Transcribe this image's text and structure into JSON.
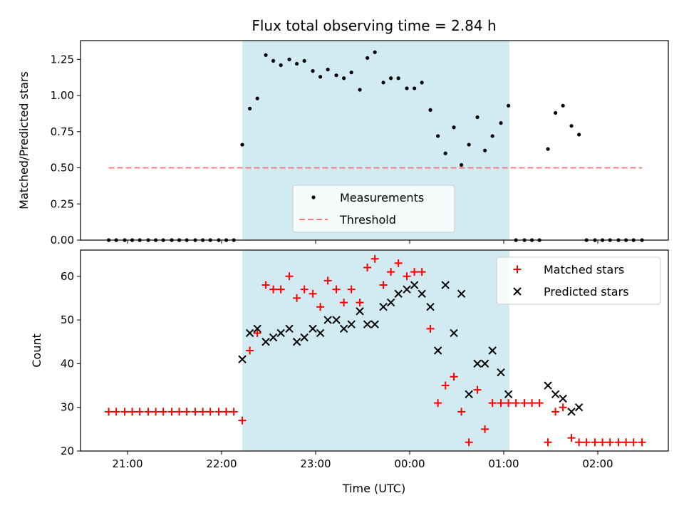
{
  "chart_data": {
    "title": "Flux total observing time = 2.84 h",
    "xlabel": "Time (UTC)",
    "x_unit": "hours since midnight UTC (negative = previous evening)",
    "xlim": [
      -3.5,
      2.75
    ],
    "x_ticks": [
      {
        "value": -3,
        "label": "21:00"
      },
      {
        "value": -2,
        "label": "22:00"
      },
      {
        "value": -1,
        "label": "23:00"
      },
      {
        "value": 0,
        "label": "00:00"
      },
      {
        "value": 1,
        "label": "01:00"
      },
      {
        "value": 2,
        "label": "02:00"
      }
    ],
    "observing_span": [
      -1.78,
      1.06
    ],
    "observing_span_color": "#add8e6",
    "panels": [
      {
        "type": "scatter",
        "ylabel": "Matched/Predicted stars",
        "ylim": [
          0,
          1.38
        ],
        "y_ticks": [
          {
            "value": 0,
            "label": "0.00"
          },
          {
            "value": 0.25,
            "label": "0.25"
          },
          {
            "value": 0.5,
            "label": "0.50"
          },
          {
            "value": 0.75,
            "label": "0.75"
          },
          {
            "value": 1.0,
            "label": "1.00"
          },
          {
            "value": 1.25,
            "label": "1.25"
          }
        ],
        "legend": {
          "position": "lower-center",
          "entries": [
            "Measurements",
            "Threshold"
          ]
        },
        "series": [
          {
            "name": "Measurements",
            "marker": "dot",
            "color": "#000000",
            "points": [
              [
                -3.2,
                0
              ],
              [
                -3.12,
                0
              ],
              [
                -3.03,
                0
              ],
              [
                -2.95,
                0
              ],
              [
                -2.87,
                0
              ],
              [
                -2.78,
                0
              ],
              [
                -2.7,
                0
              ],
              [
                -2.62,
                0
              ],
              [
                -2.53,
                0
              ],
              [
                -2.45,
                0
              ],
              [
                -2.37,
                0
              ],
              [
                -2.28,
                0
              ],
              [
                -2.2,
                0
              ],
              [
                -2.12,
                0
              ],
              [
                -2.03,
                0
              ],
              [
                -1.95,
                0
              ],
              [
                -1.87,
                0
              ],
              [
                -1.78,
                0.66
              ],
              [
                -1.7,
                0.91
              ],
              [
                -1.62,
                0.98
              ],
              [
                -1.53,
                1.28
              ],
              [
                -1.45,
                1.24
              ],
              [
                -1.37,
                1.21
              ],
              [
                -1.28,
                1.25
              ],
              [
                -1.2,
                1.22
              ],
              [
                -1.12,
                1.24
              ],
              [
                -1.03,
                1.17
              ],
              [
                -0.95,
                1.13
              ],
              [
                -0.87,
                1.18
              ],
              [
                -0.78,
                1.14
              ],
              [
                -0.7,
                1.12
              ],
              [
                -0.62,
                1.16
              ],
              [
                -0.53,
                1.04
              ],
              [
                -0.45,
                1.26
              ],
              [
                -0.37,
                1.3
              ],
              [
                -0.28,
                1.09
              ],
              [
                -0.2,
                1.12
              ],
              [
                -0.12,
                1.12
              ],
              [
                -0.03,
                1.05
              ],
              [
                0.05,
                1.05
              ],
              [
                0.13,
                1.09
              ],
              [
                0.22,
                0.9
              ],
              [
                0.3,
                0.72
              ],
              [
                0.38,
                0.6
              ],
              [
                0.47,
                0.78
              ],
              [
                0.55,
                0.52
              ],
              [
                0.63,
                0.66
              ],
              [
                0.72,
                0.85
              ],
              [
                0.8,
                0.62
              ],
              [
                0.88,
                0.72
              ],
              [
                0.97,
                0.81
              ],
              [
                1.05,
                0.93
              ],
              [
                1.13,
                0
              ],
              [
                1.22,
                0
              ],
              [
                1.3,
                0
              ],
              [
                1.38,
                0
              ],
              [
                1.47,
                0.63
              ],
              [
                1.55,
                0.88
              ],
              [
                1.63,
                0.93
              ],
              [
                1.72,
                0.79
              ],
              [
                1.8,
                0.73
              ],
              [
                1.88,
                0
              ],
              [
                1.97,
                0
              ],
              [
                2.05,
                0
              ],
              [
                2.13,
                0
              ],
              [
                2.22,
                0
              ],
              [
                2.3,
                0
              ],
              [
                2.38,
                0
              ],
              [
                2.47,
                0
              ]
            ]
          },
          {
            "name": "Threshold",
            "kind": "line",
            "style": "dashed",
            "color": "#f08080",
            "points": [
              [
                -3.2,
                0.5
              ],
              [
                2.47,
                0.5
              ]
            ]
          }
        ]
      },
      {
        "type": "scatter",
        "ylabel": "Count",
        "ylim": [
          20,
          66
        ],
        "y_ticks": [
          {
            "value": 20,
            "label": "20"
          },
          {
            "value": 30,
            "label": "30"
          },
          {
            "value": 40,
            "label": "40"
          },
          {
            "value": 50,
            "label": "50"
          },
          {
            "value": 60,
            "label": "60"
          }
        ],
        "legend": {
          "position": "upper-right",
          "entries": [
            "Matched stars",
            "Predicted stars"
          ]
        },
        "series": [
          {
            "name": "Matched stars",
            "marker": "plus",
            "color": "#ff0000",
            "points": [
              [
                -3.2,
                29
              ],
              [
                -3.12,
                29
              ],
              [
                -3.03,
                29
              ],
              [
                -2.95,
                29
              ],
              [
                -2.87,
                29
              ],
              [
                -2.78,
                29
              ],
              [
                -2.7,
                29
              ],
              [
                -2.62,
                29
              ],
              [
                -2.53,
                29
              ],
              [
                -2.45,
                29
              ],
              [
                -2.37,
                29
              ],
              [
                -2.28,
                29
              ],
              [
                -2.2,
                29
              ],
              [
                -2.12,
                29
              ],
              [
                -2.03,
                29
              ],
              [
                -1.95,
                29
              ],
              [
                -1.87,
                29
              ],
              [
                -1.78,
                27
              ],
              [
                -1.7,
                43
              ],
              [
                -1.62,
                47
              ],
              [
                -1.53,
                58
              ],
              [
                -1.45,
                57
              ],
              [
                -1.37,
                57
              ],
              [
                -1.28,
                60
              ],
              [
                -1.2,
                55
              ],
              [
                -1.12,
                57
              ],
              [
                -1.03,
                56
              ],
              [
                -0.95,
                53
              ],
              [
                -0.87,
                59
              ],
              [
                -0.78,
                57
              ],
              [
                -0.7,
                54
              ],
              [
                -0.62,
                57
              ],
              [
                -0.53,
                54
              ],
              [
                -0.45,
                62
              ],
              [
                -0.37,
                64
              ],
              [
                -0.28,
                58
              ],
              [
                -0.2,
                61
              ],
              [
                -0.12,
                63
              ],
              [
                -0.03,
                60
              ],
              [
                0.05,
                61
              ],
              [
                0.13,
                61
              ],
              [
                0.22,
                48
              ],
              [
                0.3,
                31
              ],
              [
                0.38,
                35
              ],
              [
                0.47,
                37
              ],
              [
                0.55,
                29
              ],
              [
                0.63,
                22
              ],
              [
                0.72,
                34
              ],
              [
                0.8,
                25
              ],
              [
                0.88,
                31
              ],
              [
                0.97,
                31
              ],
              [
                1.05,
                31
              ],
              [
                1.13,
                31
              ],
              [
                1.22,
                31
              ],
              [
                1.3,
                31
              ],
              [
                1.38,
                31
              ],
              [
                1.47,
                22
              ],
              [
                1.55,
                29
              ],
              [
                1.63,
                30
              ],
              [
                1.72,
                23
              ],
              [
                1.8,
                22
              ],
              [
                1.88,
                22
              ],
              [
                1.97,
                22
              ],
              [
                2.05,
                22
              ],
              [
                2.13,
                22
              ],
              [
                2.22,
                22
              ],
              [
                2.3,
                22
              ],
              [
                2.38,
                22
              ],
              [
                2.47,
                22
              ]
            ]
          },
          {
            "name": "Predicted stars",
            "marker": "x",
            "color": "#000000",
            "points": [
              [
                -1.78,
                41
              ],
              [
                -1.7,
                47
              ],
              [
                -1.62,
                48
              ],
              [
                -1.53,
                45
              ],
              [
                -1.45,
                46
              ],
              [
                -1.37,
                47
              ],
              [
                -1.28,
                48
              ],
              [
                -1.2,
                45
              ],
              [
                -1.12,
                46
              ],
              [
                -1.03,
                48
              ],
              [
                -0.95,
                47
              ],
              [
                -0.87,
                50
              ],
              [
                -0.78,
                50
              ],
              [
                -0.7,
                48
              ],
              [
                -0.62,
                49
              ],
              [
                -0.53,
                52
              ],
              [
                -0.45,
                49
              ],
              [
                -0.37,
                49
              ],
              [
                -0.28,
                53
              ],
              [
                -0.2,
                54
              ],
              [
                -0.12,
                56
              ],
              [
                -0.03,
                57
              ],
              [
                0.05,
                58
              ],
              [
                0.13,
                56
              ],
              [
                0.22,
                53
              ],
              [
                0.3,
                43
              ],
              [
                0.38,
                58
              ],
              [
                0.47,
                47
              ],
              [
                0.55,
                56
              ],
              [
                0.63,
                33
              ],
              [
                0.72,
                40
              ],
              [
                0.8,
                40
              ],
              [
                0.88,
                43
              ],
              [
                0.97,
                38
              ],
              [
                1.05,
                33
              ],
              [
                1.47,
                35
              ],
              [
                1.55,
                33
              ],
              [
                1.63,
                32
              ],
              [
                1.72,
                29
              ],
              [
                1.8,
                30
              ]
            ]
          }
        ]
      }
    ]
  }
}
